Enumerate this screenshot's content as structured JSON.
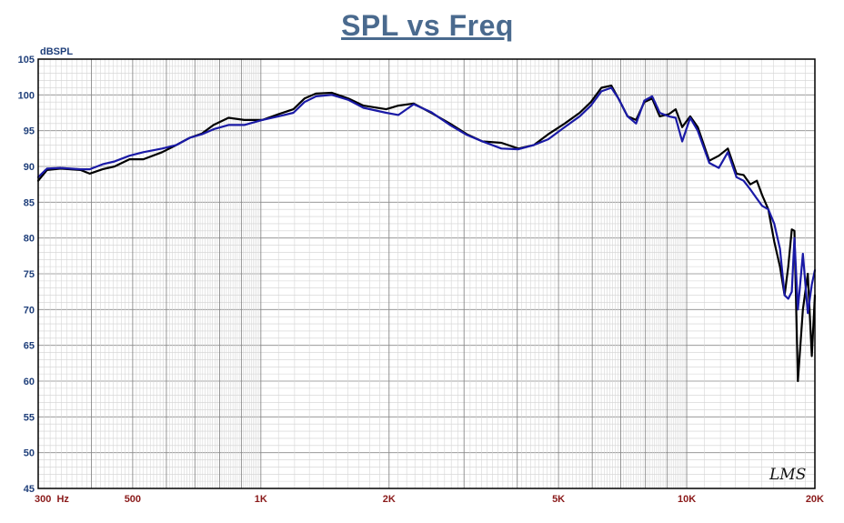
{
  "chart_data": {
    "type": "line",
    "title": "SPL vs Freq",
    "ylabel": "dBSPL",
    "xscale": "log",
    "xlim": [
      300,
      20000
    ],
    "ylim": [
      45,
      105
    ],
    "grid": true,
    "yticks": [
      45,
      50,
      55,
      60,
      65,
      70,
      75,
      80,
      85,
      90,
      95,
      100,
      105
    ],
    "xtick_labels": [
      {
        "value": 300,
        "label": "300  Hz"
      },
      {
        "value": 500,
        "label": "500"
      },
      {
        "value": 1000,
        "label": "1K"
      },
      {
        "value": 2000,
        "label": "2K"
      },
      {
        "value": 5000,
        "label": "5K"
      },
      {
        "value": 10000,
        "label": "10K"
      },
      {
        "value": 20000,
        "label": "20K"
      }
    ],
    "series": [
      {
        "color": "#000000",
        "points": [
          [
            300,
            88
          ],
          [
            315,
            89.5
          ],
          [
            340,
            89.7
          ],
          [
            380,
            89.5
          ],
          [
            400,
            89
          ],
          [
            430,
            89.6
          ],
          [
            460,
            90
          ],
          [
            500,
            91
          ],
          [
            540,
            91
          ],
          [
            600,
            92
          ],
          [
            650,
            93
          ],
          [
            700,
            94
          ],
          [
            750,
            94.6
          ],
          [
            800,
            95.8
          ],
          [
            870,
            96.8
          ],
          [
            950,
            96.5
          ],
          [
            1050,
            96.5
          ],
          [
            1150,
            97.3
          ],
          [
            1250,
            98
          ],
          [
            1330,
            99.5
          ],
          [
            1420,
            100.2
          ],
          [
            1550,
            100.3
          ],
          [
            1700,
            99.5
          ],
          [
            1850,
            98.5
          ],
          [
            2100,
            98
          ],
          [
            2250,
            98.5
          ],
          [
            2450,
            98.8
          ],
          [
            2700,
            97.5
          ],
          [
            3000,
            96
          ],
          [
            3300,
            94.5
          ],
          [
            3600,
            93.5
          ],
          [
            4000,
            93.3
          ],
          [
            4400,
            92.5
          ],
          [
            4800,
            93
          ],
          [
            5200,
            94.5
          ],
          [
            5700,
            96
          ],
          [
            6200,
            97.5
          ],
          [
            6600,
            99
          ],
          [
            7000,
            101
          ],
          [
            7400,
            101.3
          ],
          [
            7700,
            99.5
          ],
          [
            8100,
            97
          ],
          [
            8500,
            96.5
          ],
          [
            8900,
            99
          ],
          [
            9300,
            99.5
          ],
          [
            9700,
            97
          ],
          [
            10200,
            97.3
          ],
          [
            10600,
            98
          ],
          [
            11000,
            95.5
          ],
          [
            11500,
            97
          ],
          [
            12000,
            95.5
          ],
          [
            12800,
            90.8
          ],
          [
            13500,
            91.5
          ],
          [
            14200,
            92.5
          ],
          [
            14900,
            89
          ],
          [
            15500,
            88.8
          ],
          [
            16100,
            87.5
          ],
          [
            16700,
            88
          ],
          [
            17200,
            86
          ],
          [
            17800,
            84
          ],
          [
            18400,
            79.5
          ],
          [
            19000,
            76
          ],
          [
            19500,
            72
          ],
          [
            19900,
            76
          ],
          [
            20300,
            81.2
          ],
          [
            20600,
            81
          ],
          [
            21000,
            60
          ],
          [
            21600,
            70
          ],
          [
            22200,
            75
          ],
          [
            22700,
            63.5
          ],
          [
            23100,
            72
          ]
        ]
      },
      {
        "color": "#1a1aa6",
        "points": [
          [
            300,
            88.5
          ],
          [
            315,
            89.7
          ],
          [
            340,
            89.8
          ],
          [
            380,
            89.6
          ],
          [
            400,
            89.6
          ],
          [
            430,
            90.3
          ],
          [
            460,
            90.7
          ],
          [
            500,
            91.5
          ],
          [
            540,
            92
          ],
          [
            600,
            92.5
          ],
          [
            650,
            93
          ],
          [
            700,
            94
          ],
          [
            750,
            94.5
          ],
          [
            800,
            95.2
          ],
          [
            870,
            95.8
          ],
          [
            950,
            95.8
          ],
          [
            1050,
            96.5
          ],
          [
            1150,
            97
          ],
          [
            1250,
            97.5
          ],
          [
            1330,
            99
          ],
          [
            1420,
            99.8
          ],
          [
            1550,
            100
          ],
          [
            1700,
            99.3
          ],
          [
            1850,
            98.2
          ],
          [
            2100,
            97.5
          ],
          [
            2250,
            97.2
          ],
          [
            2450,
            98.7
          ],
          [
            2700,
            97.6
          ],
          [
            3000,
            95.8
          ],
          [
            3300,
            94.4
          ],
          [
            3600,
            93.5
          ],
          [
            4000,
            92.5
          ],
          [
            4400,
            92.4
          ],
          [
            4800,
            93
          ],
          [
            5200,
            93.8
          ],
          [
            5700,
            95.5
          ],
          [
            6200,
            97
          ],
          [
            6600,
            98.5
          ],
          [
            7000,
            100.5
          ],
          [
            7400,
            101
          ],
          [
            7700,
            99.5
          ],
          [
            8100,
            97
          ],
          [
            8500,
            96
          ],
          [
            8900,
            99.2
          ],
          [
            9300,
            99.8
          ],
          [
            9700,
            97.5
          ],
          [
            10200,
            97
          ],
          [
            10600,
            96.8
          ],
          [
            11000,
            93.5
          ],
          [
            11500,
            96.8
          ],
          [
            12000,
            95
          ],
          [
            12800,
            90.5
          ],
          [
            13500,
            89.8
          ],
          [
            14200,
            92
          ],
          [
            14900,
            88.5
          ],
          [
            15500,
            88
          ],
          [
            16100,
            86.8
          ],
          [
            16700,
            85.5
          ],
          [
            17200,
            84.5
          ],
          [
            17800,
            84
          ],
          [
            18400,
            82
          ],
          [
            19000,
            78.5
          ],
          [
            19500,
            72
          ],
          [
            19900,
            71.5
          ],
          [
            20300,
            72.5
          ],
          [
            20600,
            80
          ],
          [
            21000,
            70
          ],
          [
            21600,
            77.8
          ],
          [
            22200,
            69.5
          ],
          [
            22700,
            73.5
          ],
          [
            23100,
            75.5
          ]
        ]
      }
    ],
    "watermark_logo": "LMS"
  }
}
